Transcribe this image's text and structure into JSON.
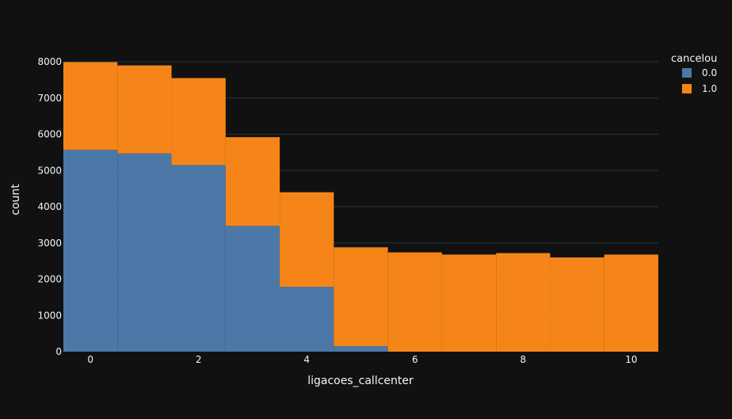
{
  "colors": {
    "background": "#111111",
    "gridline": "#283442",
    "text": "#f2f5fa",
    "series_0": "#4c78a8",
    "series_1": "#f58518"
  },
  "chart_data": {
    "type": "bar",
    "barmode": "stack",
    "x": [
      0,
      1,
      2,
      3,
      4,
      5,
      6,
      7,
      8,
      9,
      10
    ],
    "xlabel": "ligacoes_callcenter",
    "ylabel": "count",
    "xlim": [
      -0.5,
      10.5
    ],
    "ylim": [
      0,
      8000
    ],
    "xticks": [
      0,
      2,
      4,
      6,
      8,
      10
    ],
    "yticks": [
      0,
      1000,
      2000,
      3000,
      4000,
      5000,
      6000,
      7000,
      8000
    ],
    "grid": true,
    "legend": {
      "title": "cancelou",
      "placement": "top-right"
    },
    "series": [
      {
        "name": "0.0",
        "color": "#4c78a8",
        "values": [
          5570,
          5470,
          5150,
          3470,
          1790,
          150,
          0,
          0,
          0,
          0,
          0
        ]
      },
      {
        "name": "1.0",
        "color": "#f58518",
        "values": [
          2420,
          2430,
          2400,
          2450,
          2610,
          2730,
          2740,
          2680,
          2720,
          2600,
          2680
        ]
      }
    ]
  }
}
